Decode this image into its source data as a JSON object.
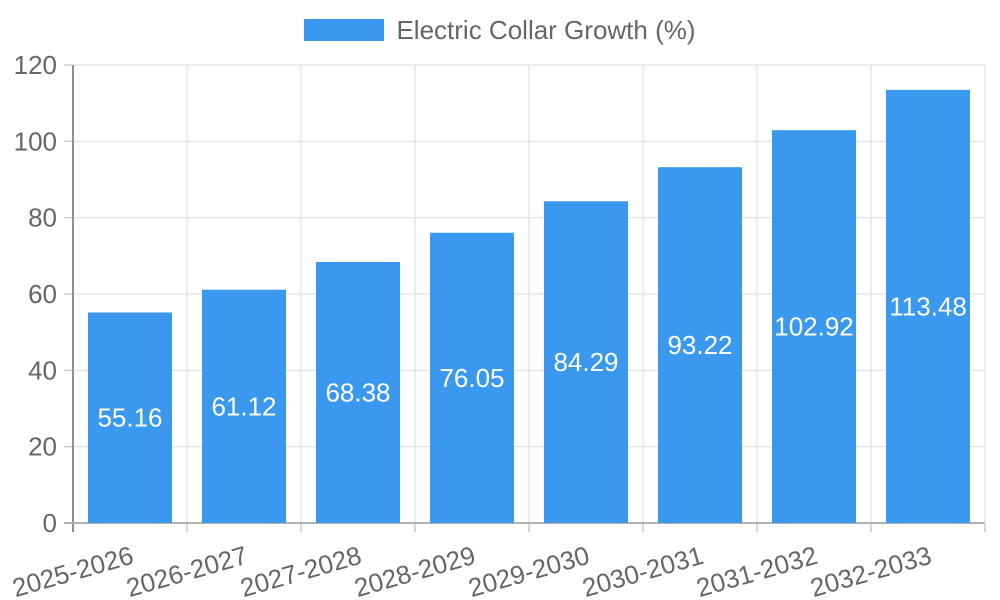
{
  "chart_data": {
    "type": "bar",
    "title": "Electric Collar Growth (%)",
    "categories": [
      "2025-2026",
      "2026-2027",
      "2027-2028",
      "2028-2029",
      "2029-2030",
      "2030-2031",
      "2031-2032",
      "2032-2033"
    ],
    "values": [
      55.16,
      61.12,
      68.38,
      76.05,
      84.29,
      93.22,
      102.92,
      113.48
    ],
    "value_decimals": 2,
    "ylim": [
      0,
      120
    ],
    "yticks": [
      0,
      20,
      40,
      60,
      80,
      100,
      120
    ],
    "grid": true,
    "legend": {
      "position": "top",
      "label": "Electric Collar Growth (%)"
    },
    "colors": {
      "bar": "#3a99ee",
      "grid": "#e6e6e6",
      "tick": "#cccccc",
      "axis_y": "#8f8f8f",
      "axis_x": "#b3b3b3",
      "text": "#666666",
      "value_label": "#ffffff",
      "background": "#ffffff"
    },
    "x_label_rotation_deg": -16
  }
}
